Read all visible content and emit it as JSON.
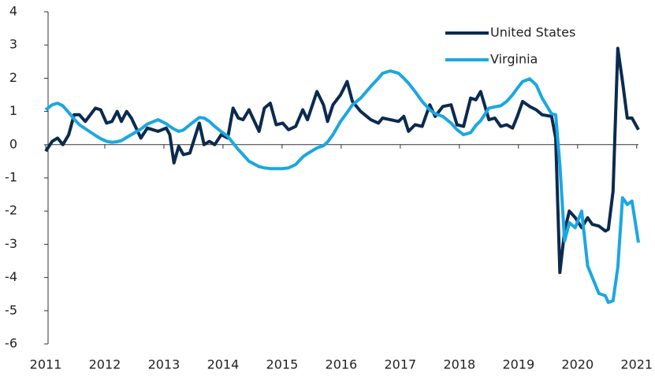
{
  "chart_data": {
    "type": "line",
    "x": [
      2011.0,
      2011.11,
      2011.2,
      2011.29,
      2011.39,
      2011.48,
      2011.57,
      2011.67,
      2011.84,
      2011.93,
      2012.03,
      2012.12,
      2012.21,
      2012.28,
      2012.37,
      2012.45,
      2012.61,
      2012.72,
      2012.9,
      2013.04,
      2013.1,
      2013.17,
      2013.25,
      2013.33,
      2013.44,
      2013.6,
      2013.68,
      2013.77,
      2013.86,
      2013.97,
      2014.08,
      2014.17,
      2014.26,
      2014.34,
      2014.44,
      2014.61,
      2014.7,
      2014.8,
      2014.9,
      2015.01,
      2015.11,
      2015.23,
      2015.35,
      2015.43,
      2015.59,
      2015.7,
      2015.77,
      2015.86,
      2015.99,
      2016.1,
      2016.19,
      2016.33,
      2016.5,
      2016.63,
      2016.7,
      2016.83,
      2016.97,
      2017.06,
      2017.14,
      2017.25,
      2017.37,
      2017.5,
      2017.59,
      2017.72,
      2017.86,
      2017.96,
      2018.07,
      2018.19,
      2018.28,
      2018.36,
      2018.5,
      2018.6,
      2018.7,
      2018.8,
      2018.9,
      2018.98,
      2019.07,
      2019.19,
      2019.3,
      2019.4,
      2019.56,
      2019.63,
      2019.7,
      2019.78,
      2019.86,
      2019.96,
      2020.07,
      2020.17,
      2020.25,
      2020.36,
      2020.47,
      2020.52,
      2020.6,
      2020.68,
      2020.76,
      2020.84,
      2020.92,
      2021.03
    ],
    "series": [
      {
        "name": "United States",
        "color": "#0b2a4f",
        "values": [
          -0.2,
          0.1,
          0.2,
          0.0,
          0.3,
          0.9,
          0.9,
          0.7,
          1.1,
          1.05,
          0.65,
          0.7,
          1.0,
          0.7,
          1.0,
          0.8,
          0.2,
          0.5,
          0.4,
          0.5,
          0.3,
          -0.55,
          -0.05,
          -0.3,
          -0.25,
          0.65,
          0.0,
          0.1,
          0.0,
          0.3,
          0.2,
          1.1,
          0.8,
          0.75,
          1.05,
          0.4,
          1.1,
          1.25,
          0.6,
          0.65,
          0.45,
          0.55,
          1.05,
          0.75,
          1.6,
          1.2,
          0.7,
          1.2,
          1.5,
          1.9,
          1.3,
          1.0,
          0.75,
          0.65,
          0.8,
          0.75,
          0.7,
          0.85,
          0.4,
          0.6,
          0.55,
          1.2,
          0.85,
          1.15,
          1.2,
          0.6,
          0.55,
          1.4,
          1.35,
          1.6,
          0.75,
          0.8,
          0.55,
          0.6,
          0.5,
          0.85,
          1.3,
          1.15,
          1.05,
          0.9,
          0.85,
          0.2,
          -3.85,
          -2.6,
          -2.0,
          -2.2,
          -2.5,
          -2.2,
          -2.4,
          -2.45,
          -2.6,
          -2.55,
          -1.4,
          2.9,
          1.9,
          0.8,
          0.8,
          0.45
        ]
      },
      {
        "name": "Virginia",
        "color": "#1ba7e1",
        "values": [
          1.05,
          1.2,
          1.25,
          1.17,
          0.97,
          0.77,
          0.6,
          0.48,
          0.28,
          0.18,
          0.1,
          0.07,
          0.09,
          0.12,
          0.22,
          0.3,
          0.47,
          0.62,
          0.75,
          0.63,
          0.55,
          0.47,
          0.4,
          0.44,
          0.6,
          0.82,
          0.8,
          0.7,
          0.55,
          0.39,
          0.25,
          0.05,
          -0.15,
          -0.3,
          -0.5,
          -0.66,
          -0.7,
          -0.72,
          -0.72,
          -0.72,
          -0.7,
          -0.6,
          -0.37,
          -0.27,
          -0.1,
          -0.03,
          0.08,
          0.3,
          0.7,
          0.97,
          1.2,
          1.4,
          1.75,
          2.0,
          2.15,
          2.22,
          2.15,
          2.0,
          1.85,
          1.6,
          1.3,
          1.05,
          0.93,
          0.85,
          0.65,
          0.45,
          0.3,
          0.36,
          0.58,
          0.72,
          1.1,
          1.14,
          1.17,
          1.3,
          1.5,
          1.7,
          1.9,
          1.98,
          1.8,
          1.4,
          0.93,
          0.9,
          -0.6,
          -2.9,
          -2.35,
          -2.5,
          -2.0,
          -3.65,
          -4.0,
          -4.48,
          -4.55,
          -4.75,
          -4.7,
          -3.7,
          -1.6,
          -1.8,
          -1.7,
          -2.95
        ]
      }
    ],
    "xlim": [
      2011,
      2021.03
    ],
    "xticks": [
      2011,
      2012,
      2013,
      2014,
      2015,
      2016,
      2017,
      2018,
      2019,
      2020,
      2021
    ],
    "ylim": [
      -6,
      4
    ],
    "yticks": [
      -6,
      -5,
      -4,
      -3,
      -2,
      -1,
      0,
      1,
      2,
      3,
      4
    ],
    "legend": "upper right"
  }
}
